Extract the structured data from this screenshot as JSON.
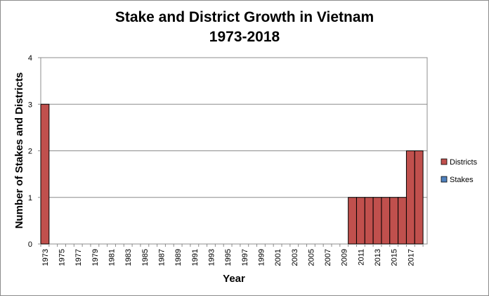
{
  "chart_data": {
    "type": "bar",
    "stacked": true,
    "title": [
      "Stake and District Growth in Vietnam",
      "1973-2018"
    ],
    "xlabel": "Year",
    "ylabel": "Number of Stakes and Districts",
    "ylim": [
      0,
      4
    ],
    "yticks": [
      "0",
      "1",
      "2",
      "3",
      "4"
    ],
    "grid": true,
    "legend_position": "right",
    "categories": [
      "1973",
      "1974",
      "1975",
      "1976",
      "1977",
      "1978",
      "1979",
      "1980",
      "1981",
      "1982",
      "1983",
      "1984",
      "1985",
      "1986",
      "1987",
      "1988",
      "1989",
      "1990",
      "1991",
      "1992",
      "1993",
      "1994",
      "1995",
      "1996",
      "1997",
      "1998",
      "1999",
      "2000",
      "2001",
      "2002",
      "2003",
      "2004",
      "2005",
      "2006",
      "2007",
      "2008",
      "2009",
      "2010",
      "2011",
      "2012",
      "2013",
      "2014",
      "2015",
      "2016",
      "2017",
      "2018"
    ],
    "xtick_labels": [
      "1973",
      "1975",
      "1977",
      "1979",
      "1981",
      "1983",
      "1985",
      "1987",
      "1989",
      "1991",
      "1993",
      "1995",
      "1997",
      "1999",
      "2001",
      "2003",
      "2005",
      "2007",
      "2009",
      "2011",
      "2013",
      "2015",
      "2017"
    ],
    "series": [
      {
        "name": "Districts",
        "color": "#C0504D",
        "values": [
          3,
          0,
          0,
          0,
          0,
          0,
          0,
          0,
          0,
          0,
          0,
          0,
          0,
          0,
          0,
          0,
          0,
          0,
          0,
          0,
          0,
          0,
          0,
          0,
          0,
          0,
          0,
          0,
          0,
          0,
          0,
          0,
          0,
          0,
          0,
          0,
          0,
          1,
          1,
          1,
          1,
          1,
          1,
          1,
          2,
          2
        ]
      },
      {
        "name": "Stakes",
        "color": "#4F81BD",
        "values": [
          0,
          0,
          0,
          0,
          0,
          0,
          0,
          0,
          0,
          0,
          0,
          0,
          0,
          0,
          0,
          0,
          0,
          0,
          0,
          0,
          0,
          0,
          0,
          0,
          0,
          0,
          0,
          0,
          0,
          0,
          0,
          0,
          0,
          0,
          0,
          0,
          0,
          0,
          0,
          0,
          0,
          0,
          0,
          0,
          0,
          0
        ]
      }
    ]
  }
}
